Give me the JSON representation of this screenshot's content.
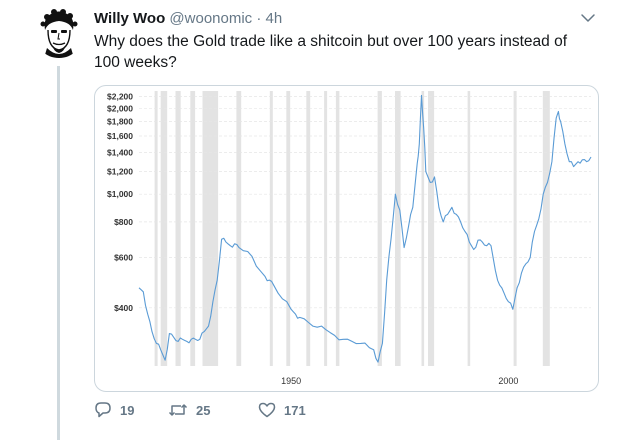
{
  "tweet": {
    "author_name": "Willy Woo",
    "author_handle": "@woonomic",
    "separator": "·",
    "time": "4h",
    "text": "Why does the Gold trade like a shitcoin but over 100 years instead of 100 weeks?",
    "caret_icon": "chevron-down-icon",
    "avatar_icon": "avatar-illustration"
  },
  "actions": {
    "replies": {
      "icon": "reply-icon",
      "count": "19"
    },
    "retweets": {
      "icon": "retweet-icon",
      "count": "25"
    },
    "likes": {
      "icon": "heart-icon",
      "count": "171"
    }
  },
  "colors": {
    "line": "#5a9bd5",
    "shade": "#e3e3e3",
    "muted": "#657786"
  },
  "chart_data": {
    "type": "line",
    "title": "",
    "xlabel": "",
    "ylabel": "",
    "yscale": "log",
    "ylim": [
      250,
      2300
    ],
    "xlim": [
      1915,
      2019
    ],
    "y_ticks": [
      {
        "value": 400,
        "label": "$400"
      },
      {
        "value": 600,
        "label": "$600"
      },
      {
        "value": 800,
        "label": "$800"
      },
      {
        "value": 1000,
        "label": "$1,000"
      },
      {
        "value": 1200,
        "label": "$1,200"
      },
      {
        "value": 1400,
        "label": "$1,400"
      },
      {
        "value": 1600,
        "label": "$1,600"
      },
      {
        "value": 1800,
        "label": "$1,800"
      },
      {
        "value": 2000,
        "label": "$2,000"
      },
      {
        "value": 2200,
        "label": "$2,200"
      }
    ],
    "x_ticks": [
      {
        "value": 1950,
        "label": "1950"
      },
      {
        "value": 2000,
        "label": "2000"
      }
    ],
    "recessions": [
      [
        1918.6,
        1919.3
      ],
      [
        1920.0,
        1921.5
      ],
      [
        1923.4,
        1924.6
      ],
      [
        1926.8,
        1927.9
      ],
      [
        1929.6,
        1933.2
      ],
      [
        1937.4,
        1938.5
      ],
      [
        1945.1,
        1945.8
      ],
      [
        1948.9,
        1949.8
      ],
      [
        1953.5,
        1954.4
      ],
      [
        1957.6,
        1958.3
      ],
      [
        1960.3,
        1961.1
      ],
      [
        1969.9,
        1970.9
      ],
      [
        1973.9,
        1975.2
      ],
      [
        1980.0,
        1980.6
      ],
      [
        1981.5,
        1982.9
      ],
      [
        1990.6,
        1991.2
      ],
      [
        2001.2,
        2001.9
      ],
      [
        2007.9,
        2009.5
      ]
    ],
    "series": [
      {
        "x": [
          1915,
          1916,
          1917,
          1918,
          1919,
          1920,
          1921,
          1922,
          1923,
          1924,
          1925,
          1926,
          1927,
          1928,
          1929,
          1930,
          1931,
          1932,
          1933,
          1934,
          1935,
          1936,
          1937,
          1938,
          1940,
          1942,
          1944,
          1945,
          1946,
          1948,
          1950,
          1951,
          1952,
          1954,
          1956,
          1958,
          1960,
          1962,
          1964,
          1966,
          1968,
          1969,
          1970,
          1971,
          1972,
          1973,
          1974,
          1975,
          1976,
          1977,
          1978,
          1979,
          1979.5,
          1980,
          1980.5,
          1981,
          1982,
          1983,
          1984,
          1985,
          1986,
          1987,
          1988,
          1989,
          1990,
          1991,
          1992,
          1993,
          1994,
          1995,
          1996,
          1997,
          1998,
          1999,
          2000,
          2001,
          2002,
          2003,
          2004,
          2005,
          2006,
          2007,
          2008,
          2009,
          2010,
          2011,
          2011.5,
          2012,
          2013,
          2014,
          2015,
          2016,
          2017,
          2018,
          2019
        ],
        "y": [
          470,
          455,
          380,
          330,
          300,
          285,
          262,
          325,
          315,
          305,
          310,
          305,
          310,
          310,
          310,
          330,
          345,
          420,
          500,
          695,
          680,
          660,
          670,
          650,
          630,
          560,
          515,
          500,
          480,
          430,
          395,
          380,
          370,
          355,
          342,
          335,
          320,
          310,
          305,
          300,
          290,
          285,
          258,
          300,
          500,
          700,
          1000,
          880,
          650,
          770,
          900,
          1280,
          1500,
          2220,
          1700,
          1200,
          1100,
          1150,
          900,
          800,
          850,
          900,
          850,
          800,
          740,
          680,
          640,
          690,
          680,
          660,
          660,
          540,
          480,
          450,
          420,
          395,
          470,
          530,
          570,
          600,
          740,
          820,
          1000,
          1100,
          1300,
          1850,
          1950,
          1800,
          1500,
          1300,
          1250,
          1300,
          1320,
          1300,
          1350
        ]
      }
    ]
  }
}
